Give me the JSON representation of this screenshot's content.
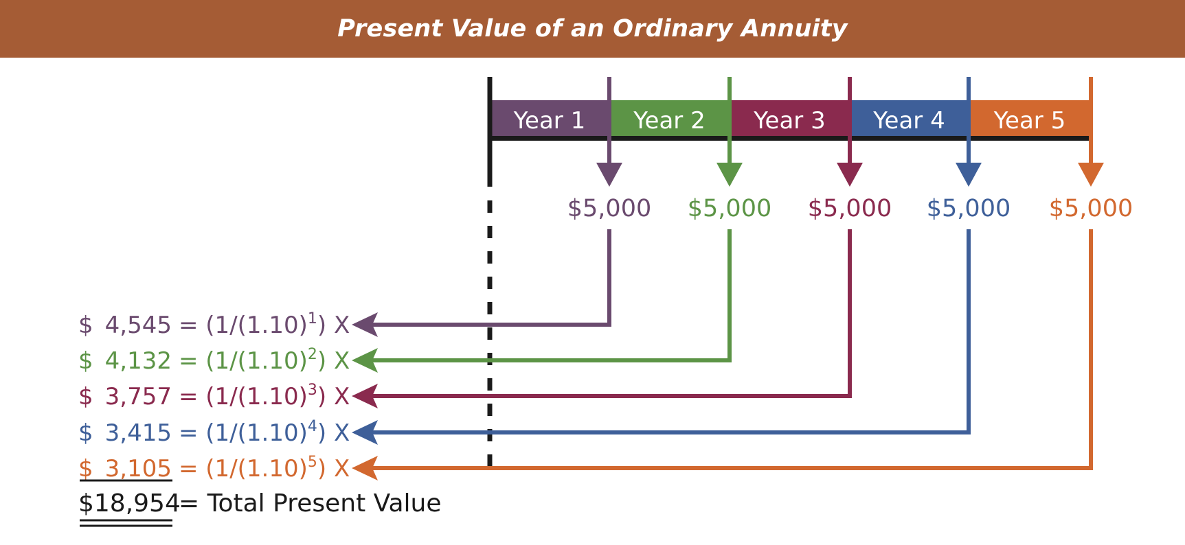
{
  "title": "Present Value of an Ordinary Annuity",
  "colors": {
    "header_bg": "#A55C35",
    "timeline": "#1a1a1a",
    "year1": "#6A4A6E",
    "year2": "#5C9446",
    "year3": "#8A2A4E",
    "year4": "#3E5F99",
    "year5": "#D2682F"
  },
  "years": [
    {
      "label": "Year 1",
      "payment": "$5,000",
      "pv_dollar": "$",
      "pv_amount": "4,545",
      "formula_pre": "= (1/(1.10)",
      "exponent": "1",
      "formula_post": ") X"
    },
    {
      "label": "Year 2",
      "payment": "$5,000",
      "pv_dollar": "$",
      "pv_amount": "4,132",
      "formula_pre": "= (1/(1.10)",
      "exponent": "2",
      "formula_post": ") X"
    },
    {
      "label": "Year 3",
      "payment": "$5,000",
      "pv_dollar": "$",
      "pv_amount": "3,757",
      "formula_pre": "= (1/(1.10)",
      "exponent": "3",
      "formula_post": ") X"
    },
    {
      "label": "Year 4",
      "payment": "$5,000",
      "pv_dollar": "$",
      "pv_amount": "3,415",
      "formula_pre": "= (1/(1.10)",
      "exponent": "4",
      "formula_post": ") X"
    },
    {
      "label": "Year 5",
      "payment": "$5,000",
      "pv_dollar": "$",
      "pv_amount": "3,105",
      "formula_pre": "= (1/(1.10)",
      "exponent": "5",
      "formula_post": ") X"
    }
  ],
  "total": {
    "amount": "$18,954",
    "label": "= Total Present Value"
  }
}
